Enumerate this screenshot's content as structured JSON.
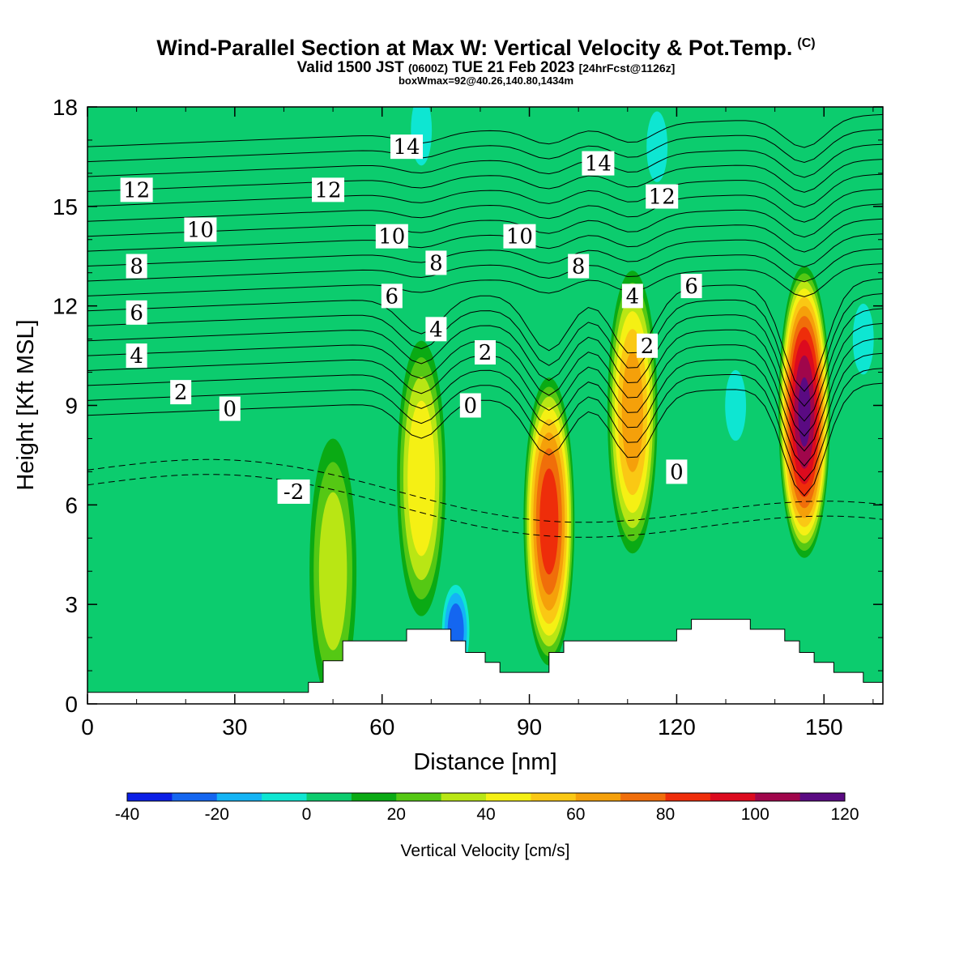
{
  "header": {
    "title": "Wind-Parallel Section at Max W: Vertical Velocity & Pot.Temp.",
    "title_mark": "(C)",
    "valid_prefix": "Valid 1500 JST",
    "valid_utc": "(0600Z)",
    "valid_date": "TUE 21 Feb 2023",
    "forecast": "[24hrFcst@1126z]",
    "box_info": "boxWmax=92@40.26,140.80,1434m"
  },
  "chart_data": {
    "type": "heatmap",
    "xlabel": "Distance [nm]",
    "ylabel": "Height [Kft MSL]",
    "xlim": [
      0,
      162
    ],
    "ylim": [
      0,
      18
    ],
    "x_ticks": [
      0,
      30,
      60,
      90,
      120,
      150
    ],
    "y_ticks": [
      0,
      3,
      6,
      9,
      12,
      15,
      18
    ],
    "colorbar": {
      "label": "Vertical Velocity [cm/s]",
      "tick_labels": [
        -40,
        -20,
        0,
        20,
        40,
        60,
        80,
        100,
        120
      ],
      "levels": [
        -40,
        -30,
        -20,
        -10,
        0,
        10,
        20,
        30,
        40,
        50,
        60,
        70,
        80,
        90,
        100,
        110,
        120
      ],
      "colors": [
        "#0a1ee6",
        "#1466f0",
        "#14b4f5",
        "#0ee6d2",
        "#0ccc6e",
        "#0aaa14",
        "#55c814",
        "#b9e614",
        "#f5f014",
        "#fac814",
        "#f5a00a",
        "#f06e0a",
        "#ee2d0a",
        "#dc0a1e",
        "#a0064b",
        "#5a0a82"
      ]
    },
    "background_value": 0,
    "updraft_cores": [
      {
        "x": 50,
        "z": 4.0,
        "peak": 35
      },
      {
        "x": 68,
        "z": 6.8,
        "peak": 48
      },
      {
        "x": 94,
        "z": 5.5,
        "peak": 85
      },
      {
        "x": 111,
        "z": 8.8,
        "peak": 65
      },
      {
        "x": 146,
        "z": 8.8,
        "peak": 110
      }
    ],
    "downdraft_regions": [
      {
        "x": 75,
        "z": 2.2,
        "peak": -35
      },
      {
        "x": 68,
        "z": 17.3,
        "peak": -12
      },
      {
        "x": 116,
        "z": 16.8,
        "peak": -12
      },
      {
        "x": 132,
        "z": 9.0,
        "peak": -12
      },
      {
        "x": 158,
        "z": 11.0,
        "peak": -12
      }
    ],
    "terrain": [
      {
        "x": 0,
        "z": 0.35
      },
      {
        "x": 45,
        "z": 0.35
      },
      {
        "x": 45,
        "z": 0.65
      },
      {
        "x": 48,
        "z": 0.65
      },
      {
        "x": 48,
        "z": 1.3
      },
      {
        "x": 52,
        "z": 1.3
      },
      {
        "x": 52,
        "z": 1.9
      },
      {
        "x": 65,
        "z": 1.9
      },
      {
        "x": 65,
        "z": 2.25
      },
      {
        "x": 74,
        "z": 2.25
      },
      {
        "x": 74,
        "z": 1.9
      },
      {
        "x": 77,
        "z": 1.9
      },
      {
        "x": 77,
        "z": 1.55
      },
      {
        "x": 81,
        "z": 1.55
      },
      {
        "x": 81,
        "z": 1.25
      },
      {
        "x": 84,
        "z": 1.25
      },
      {
        "x": 84,
        "z": 0.95
      },
      {
        "x": 94,
        "z": 0.95
      },
      {
        "x": 94,
        "z": 1.55
      },
      {
        "x": 97,
        "z": 1.55
      },
      {
        "x": 97,
        "z": 1.9
      },
      {
        "x": 120,
        "z": 1.9
      },
      {
        "x": 120,
        "z": 2.25
      },
      {
        "x": 123,
        "z": 2.25
      },
      {
        "x": 123,
        "z": 2.55
      },
      {
        "x": 135,
        "z": 2.55
      },
      {
        "x": 135,
        "z": 2.25
      },
      {
        "x": 142,
        "z": 2.25
      },
      {
        "x": 142,
        "z": 1.9
      },
      {
        "x": 145,
        "z": 1.9
      },
      {
        "x": 145,
        "z": 1.55
      },
      {
        "x": 148,
        "z": 1.55
      },
      {
        "x": 148,
        "z": 1.25
      },
      {
        "x": 152,
        "z": 1.25
      },
      {
        "x": 152,
        "z": 0.95
      },
      {
        "x": 158,
        "z": 0.95
      },
      {
        "x": 158,
        "z": 0.65
      },
      {
        "x": 162,
        "z": 0.65
      }
    ],
    "theta_contour_labels": [
      {
        "text": "12",
        "x": 10,
        "z": 15.5
      },
      {
        "text": "12",
        "x": 49,
        "z": 15.5
      },
      {
        "text": "12",
        "x": 117,
        "z": 15.3
      },
      {
        "text": "14",
        "x": 65,
        "z": 16.8
      },
      {
        "text": "14",
        "x": 104,
        "z": 16.3
      },
      {
        "text": "10",
        "x": 23,
        "z": 14.3
      },
      {
        "text": "10",
        "x": 62,
        "z": 14.1
      },
      {
        "text": "10",
        "x": 88,
        "z": 14.1
      },
      {
        "text": "8",
        "x": 10,
        "z": 13.2
      },
      {
        "text": "8",
        "x": 71,
        "z": 13.3
      },
      {
        "text": "8",
        "x": 100,
        "z": 13.2
      },
      {
        "text": "6",
        "x": 10,
        "z": 11.8
      },
      {
        "text": "6",
        "x": 62,
        "z": 12.3
      },
      {
        "text": "6",
        "x": 123,
        "z": 12.6
      },
      {
        "text": "4",
        "x": 10,
        "z": 10.5
      },
      {
        "text": "4",
        "x": 71,
        "z": 11.3
      },
      {
        "text": "4",
        "x": 111,
        "z": 12.3
      },
      {
        "text": "2",
        "x": 19,
        "z": 9.4
      },
      {
        "text": "2",
        "x": 81,
        "z": 10.6
      },
      {
        "text": "2",
        "x": 114,
        "z": 10.8
      },
      {
        "text": "0",
        "x": 29,
        "z": 8.9
      },
      {
        "text": "0",
        "x": 78,
        "z": 9.0
      },
      {
        "text": "0",
        "x": 120,
        "z": 7.0
      },
      {
        "text": "-2",
        "x": 42,
        "z": 6.4
      }
    ]
  }
}
